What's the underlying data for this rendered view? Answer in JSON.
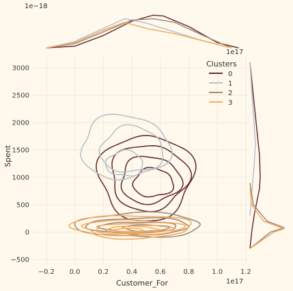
{
  "chart_data": {
    "type": "kde-joint",
    "xlabel": "Customer_For",
    "ylabel": "Spent",
    "x_offset_label": "1e17",
    "x_offset_label_bottom": "1e17",
    "top_marginal_offset_label": "1e−18",
    "xlim": [
      -0.3,
      1.22
    ],
    "ylim": [
      -600,
      3200
    ],
    "x_ticks": [
      -0.2,
      0.0,
      0.2,
      0.4,
      0.6,
      0.8,
      1.0,
      1.2
    ],
    "x_tick_labels": [
      "−0.2",
      "0.0",
      "0.2",
      "0.4",
      "0.6",
      "0.8",
      "1.0",
      "1.2"
    ],
    "y_ticks": [
      -500,
      0,
      500,
      1000,
      1500,
      2000,
      2500,
      3000
    ],
    "y_tick_labels": [
      "−500",
      "0",
      "500",
      "1000",
      "1500",
      "2000",
      "2500",
      "3000"
    ],
    "grid": true,
    "background": "#FFF9ED",
    "legend": {
      "title": "Clusters",
      "placement": "top-right",
      "entries": [
        {
          "label": "0",
          "color": "#682F2F"
        },
        {
          "label": "1",
          "color": "#B9C0C9"
        },
        {
          "label": "2",
          "color": "#9F8A78"
        },
        {
          "label": "3",
          "color": "#F3AB60"
        }
      ]
    },
    "series": [
      {
        "name": "0",
        "color": "#682F2F",
        "contours": [
          {
            "cx": 0.5,
            "cy": 1000,
            "rx": 0.33,
            "ry": 780
          },
          {
            "cx": 0.52,
            "cy": 1000,
            "rx": 0.27,
            "ry": 600
          },
          {
            "cx": 0.53,
            "cy": 950,
            "rx": 0.21,
            "ry": 430
          },
          {
            "cx": 0.55,
            "cy": 900,
            "rx": 0.14,
            "ry": 260
          }
        ],
        "marginal_x": [
          [
            -0.2,
            0
          ],
          [
            0.0,
            0.05
          ],
          [
            0.2,
            0.35
          ],
          [
            0.4,
            0.75
          ],
          [
            0.55,
            0.92
          ],
          [
            0.62,
            0.9
          ],
          [
            0.8,
            0.6
          ],
          [
            1.0,
            0.15
          ],
          [
            1.15,
            0
          ]
        ],
        "marginal_y": [
          [
            -300,
            0
          ],
          [
            0,
            0.05
          ],
          [
            300,
            0.12
          ],
          [
            800,
            0.28
          ],
          [
            1000,
            0.3
          ],
          [
            1400,
            0.28
          ],
          [
            2000,
            0.18
          ],
          [
            2600,
            0.08
          ],
          [
            3100,
            0
          ]
        ]
      },
      {
        "name": "1",
        "color": "#B9C0C9",
        "contours": [
          {
            "cx": 0.35,
            "cy": 1550,
            "rx": 0.31,
            "ry": 580
          },
          {
            "cx": 0.4,
            "cy": 1500,
            "rx": 0.22,
            "ry": 420
          },
          {
            "cx": 0.35,
            "cy": 1250,
            "rx": 0.13,
            "ry": 230
          }
        ],
        "marginal_x": [
          [
            -0.2,
            0
          ],
          [
            0.0,
            0.18
          ],
          [
            0.2,
            0.55
          ],
          [
            0.35,
            0.82
          ],
          [
            0.5,
            0.7
          ],
          [
            0.7,
            0.45
          ],
          [
            0.9,
            0.2
          ],
          [
            1.1,
            0
          ]
        ],
        "marginal_y": [
          [
            300,
            0
          ],
          [
            700,
            0.05
          ],
          [
            1200,
            0.12
          ],
          [
            1600,
            0.16
          ],
          [
            2000,
            0.12
          ],
          [
            2500,
            0.06
          ],
          [
            3100,
            0
          ]
        ]
      },
      {
        "name": "2",
        "color": "#9F8A78",
        "contours": [
          {
            "cx": 0.45,
            "cy": 130,
            "rx": 0.44,
            "ry": 220
          },
          {
            "cx": 0.45,
            "cy": 110,
            "rx": 0.36,
            "ry": 150
          },
          {
            "cx": 0.45,
            "cy": 90,
            "rx": 0.27,
            "ry": 95
          },
          {
            "cx": 0.5,
            "cy": 75,
            "rx": 0.16,
            "ry": 55
          }
        ],
        "marginal_x": [
          [
            -0.2,
            0
          ],
          [
            0.0,
            0.12
          ],
          [
            0.2,
            0.45
          ],
          [
            0.4,
            0.78
          ],
          [
            0.55,
            0.82
          ],
          [
            0.7,
            0.72
          ],
          [
            0.9,
            0.35
          ],
          [
            1.1,
            0
          ]
        ],
        "marginal_y": [
          [
            -300,
            0
          ],
          [
            0,
            0.6
          ],
          [
            80,
            1.0
          ],
          [
            200,
            0.5
          ],
          [
            500,
            0.1
          ],
          [
            900,
            0
          ]
        ]
      },
      {
        "name": "3",
        "color": "#F3AB60",
        "contours": [
          {
            "cx": 0.4,
            "cy": 100,
            "rx": 0.42,
            "ry": 210
          },
          {
            "cx": 0.4,
            "cy": 80,
            "rx": 0.35,
            "ry": 140
          },
          {
            "cx": 0.4,
            "cy": 60,
            "rx": 0.27,
            "ry": 90
          },
          {
            "cx": 0.4,
            "cy": 50,
            "rx": 0.18,
            "ry": 55
          },
          {
            "cx": 0.38,
            "cy": 40,
            "rx": 0.1,
            "ry": 30
          }
        ],
        "marginal_x": [
          [
            -0.2,
            0
          ],
          [
            0.0,
            0.15
          ],
          [
            0.2,
            0.5
          ],
          [
            0.35,
            0.72
          ],
          [
            0.5,
            0.55
          ],
          [
            0.7,
            0.4
          ],
          [
            0.9,
            0.2
          ],
          [
            1.1,
            0
          ]
        ],
        "marginal_y": [
          [
            -300,
            0
          ],
          [
            0,
            0.7
          ],
          [
            60,
            1.0
          ],
          [
            200,
            0.4
          ],
          [
            500,
            0.05
          ],
          [
            800,
            0
          ]
        ]
      }
    ]
  }
}
